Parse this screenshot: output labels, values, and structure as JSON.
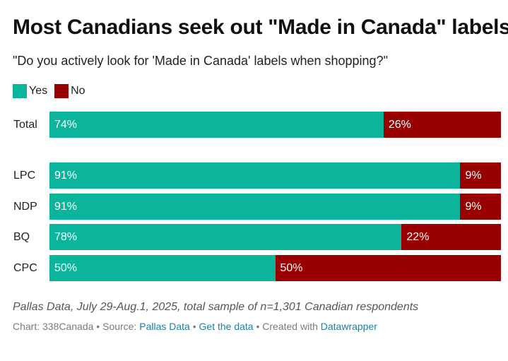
{
  "chart_data": {
    "type": "bar",
    "orientation": "horizontal",
    "stacked": true,
    "title": "Most Canadians seek out \"Made in Canada\" labels",
    "subtitle": "\"Do you actively look for 'Made in Canada' labels when shopping?\"",
    "categories": [
      "Total",
      "LPC",
      "NDP",
      "BQ",
      "CPC"
    ],
    "series": [
      {
        "name": "Yes",
        "color": "#0bb59b",
        "values": [
          74,
          91,
          91,
          78,
          50
        ],
        "labels": [
          "74%",
          "91%",
          "91%",
          "78%",
          "50%"
        ]
      },
      {
        "name": "No",
        "color": "#990000",
        "values": [
          26,
          9,
          9,
          22,
          50
        ],
        "labels": [
          "26%",
          "9%",
          "9%",
          "22%",
          "50%"
        ]
      }
    ],
    "xlim": [
      0,
      100
    ],
    "legend_position": "top-left",
    "grid": false
  },
  "notes": "Pallas Data, July 29-Aug.1, 2025, total sample of n=1,301 Canadian respondents",
  "footer": {
    "chart_credit": "Chart: 338Canada",
    "sep1": " • ",
    "source_prefix": "Source: ",
    "source_link": "Pallas Data",
    "sep2": " • ",
    "data_link": "Get the data",
    "sep3": " • ",
    "created_prefix": "Created with ",
    "created_link": "Datawrapper"
  }
}
